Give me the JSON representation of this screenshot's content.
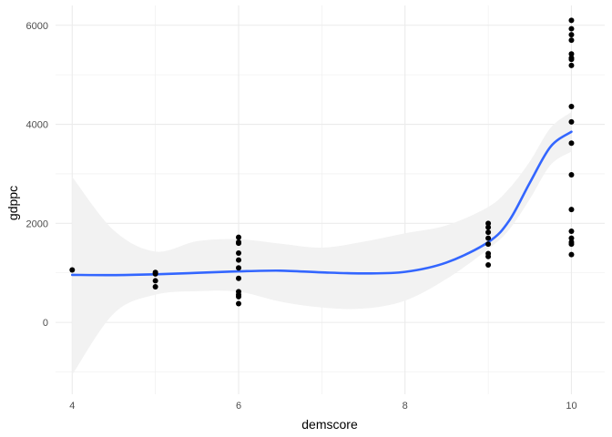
{
  "chart_data": {
    "type": "scatter",
    "xlabel": "demscore",
    "ylabel": "gdppc",
    "xlim": [
      3.8,
      10.4
    ],
    "ylim": [
      -1450,
      6400
    ],
    "x_major_ticks": [
      4,
      6,
      8,
      10
    ],
    "x_minor_ticks": [
      5,
      7,
      9
    ],
    "y_major_ticks": [
      0,
      2000,
      4000,
      6000
    ],
    "y_minor_ticks": [
      -1000,
      1000,
      3000,
      5000
    ],
    "x_tick_labels": [
      "4",
      "6",
      "8",
      "10"
    ],
    "y_tick_labels": [
      "0",
      "2000",
      "4000",
      "6000"
    ],
    "grid": true,
    "series": [
      {
        "kind": "points",
        "color": "#000000",
        "points": [
          [
            4,
            1060
          ],
          [
            5,
            1010
          ],
          [
            5,
            980
          ],
          [
            5,
            840
          ],
          [
            5,
            720
          ],
          [
            6,
            1720
          ],
          [
            6,
            1620
          ],
          [
            6,
            1600
          ],
          [
            6,
            1400
          ],
          [
            6,
            1260
          ],
          [
            6,
            1100
          ],
          [
            6,
            890
          ],
          [
            6,
            620
          ],
          [
            6,
            560
          ],
          [
            6,
            520
          ],
          [
            6,
            380
          ],
          [
            9,
            2000
          ],
          [
            9,
            1920
          ],
          [
            9,
            1820
          ],
          [
            9,
            1700
          ],
          [
            9,
            1580
          ],
          [
            9,
            1390
          ],
          [
            9,
            1330
          ],
          [
            9,
            1160
          ],
          [
            10,
            6100
          ],
          [
            10,
            5930
          ],
          [
            10,
            5810
          ],
          [
            10,
            5700
          ],
          [
            10,
            5420
          ],
          [
            10,
            5340
          ],
          [
            10,
            5310
          ],
          [
            10,
            5190
          ],
          [
            10,
            4360
          ],
          [
            10,
            4050
          ],
          [
            10,
            3620
          ],
          [
            10,
            2980
          ],
          [
            10,
            2280
          ],
          [
            10,
            1840
          ],
          [
            10,
            1700
          ],
          [
            10,
            1620
          ],
          [
            10,
            1580
          ],
          [
            10,
            1370
          ]
        ]
      },
      {
        "kind": "smooth",
        "color": "#3366ff",
        "x": [
          4,
          4.5,
          5,
          5.5,
          6,
          6.5,
          7,
          7.5,
          8,
          8.5,
          9,
          9.25,
          9.5,
          9.75,
          10
        ],
        "y": [
          960,
          955,
          970,
          1000,
          1030,
          1045,
          1010,
          990,
          1020,
          1210,
          1620,
          2050,
          2820,
          3550,
          3850
        ],
        "lower": [
          -1060,
          180,
          560,
          630,
          620,
          420,
          300,
          280,
          440,
          880,
          1480,
          1870,
          2490,
          3180,
          3450
        ],
        "upper": [
          2940,
          1860,
          1430,
          1640,
          1680,
          1590,
          1510,
          1630,
          1800,
          1960,
          2330,
          2700,
          3250,
          3930,
          4250
        ],
        "band_color": "#f2f2f2"
      }
    ]
  }
}
